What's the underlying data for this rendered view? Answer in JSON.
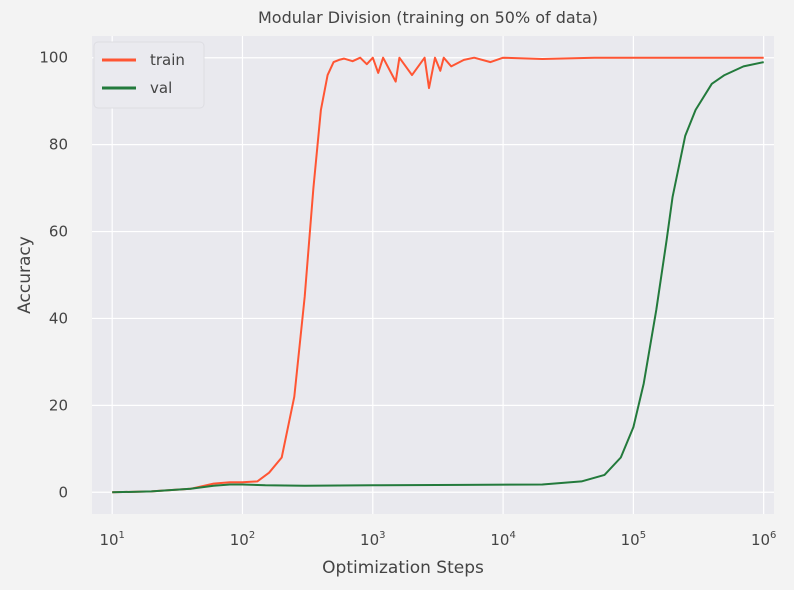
{
  "chart_data": {
    "type": "line",
    "title": "Modular Division (training on 50% of data)",
    "xlabel": "Optimization Steps",
    "ylabel": "Accuracy",
    "xscale": "log",
    "xlim": [
      7,
      1200000
    ],
    "ylim": [
      -5,
      105
    ],
    "xticks": [
      10,
      100,
      1000,
      10000,
      100000,
      1000000
    ],
    "xtick_labels": [
      {
        "base": "10",
        "exp": "1"
      },
      {
        "base": "10",
        "exp": "2"
      },
      {
        "base": "10",
        "exp": "3"
      },
      {
        "base": "10",
        "exp": "4"
      },
      {
        "base": "10",
        "exp": "5"
      },
      {
        "base": "10",
        "exp": "6"
      }
    ],
    "yticks": [
      0,
      20,
      40,
      60,
      80,
      100
    ],
    "ytick_labels": [
      "0",
      "20",
      "40",
      "60",
      "80",
      "100"
    ],
    "grid": true,
    "legend_position": "top-left",
    "series": [
      {
        "name": "train",
        "color": "#ff5533",
        "x": [
          10,
          20,
          40,
          60,
          80,
          100,
          130,
          160,
          200,
          250,
          300,
          350,
          400,
          450,
          500,
          550,
          600,
          700,
          800,
          900,
          1000,
          1100,
          1200,
          1500,
          1600,
          2000,
          2500,
          2700,
          3000,
          3300,
          3500,
          4000,
          5000,
          6000,
          8000,
          10000,
          20000,
          50000,
          100000,
          1000000
        ],
        "y": [
          0,
          0.2,
          0.8,
          2,
          2.3,
          2.3,
          2.5,
          4.5,
          8,
          22,
          45,
          70,
          88,
          96,
          99,
          99.5,
          99.8,
          99.2,
          100,
          98.5,
          100,
          96.5,
          100,
          94.5,
          100,
          96,
          100,
          93,
          100,
          97,
          100,
          98,
          99.5,
          100,
          99,
          100,
          99.7,
          100,
          100,
          100
        ]
      },
      {
        "name": "val",
        "color": "#237a3c",
        "x": [
          10,
          20,
          40,
          60,
          80,
          100,
          150,
          300,
          1000,
          5000,
          20000,
          40000,
          60000,
          80000,
          100000,
          120000,
          150000,
          180000,
          200000,
          250000,
          300000,
          400000,
          500000,
          700000,
          1000000
        ],
        "y": [
          0,
          0.2,
          0.8,
          1.5,
          1.8,
          1.8,
          1.6,
          1.5,
          1.6,
          1.7,
          1.8,
          2.5,
          4,
          8,
          15,
          25,
          42,
          58,
          68,
          82,
          88,
          94,
          96,
          98,
          99
        ]
      }
    ]
  }
}
